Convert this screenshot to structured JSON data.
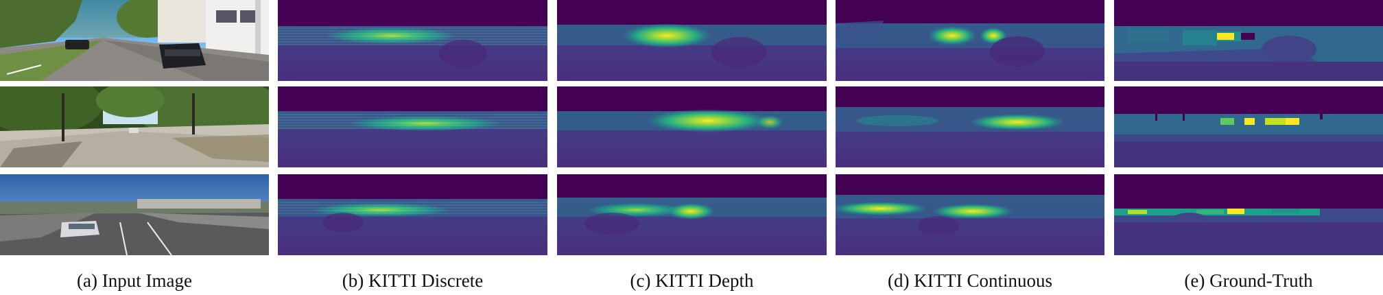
{
  "figure": {
    "captions": [
      "(a) Input Image",
      "(b) KITTI Discrete",
      "(c) KITTI Depth",
      "(d) KITTI Continuous",
      "(e) Ground-Truth"
    ]
  },
  "colors": {
    "viridis_dark": "#440154",
    "viridis_purple": "#472d7b",
    "viridis_blue": "#3b528b",
    "viridis_teal": "#21918c",
    "viridis_green": "#5ec962",
    "viridis_yellow": "#fde725"
  }
}
